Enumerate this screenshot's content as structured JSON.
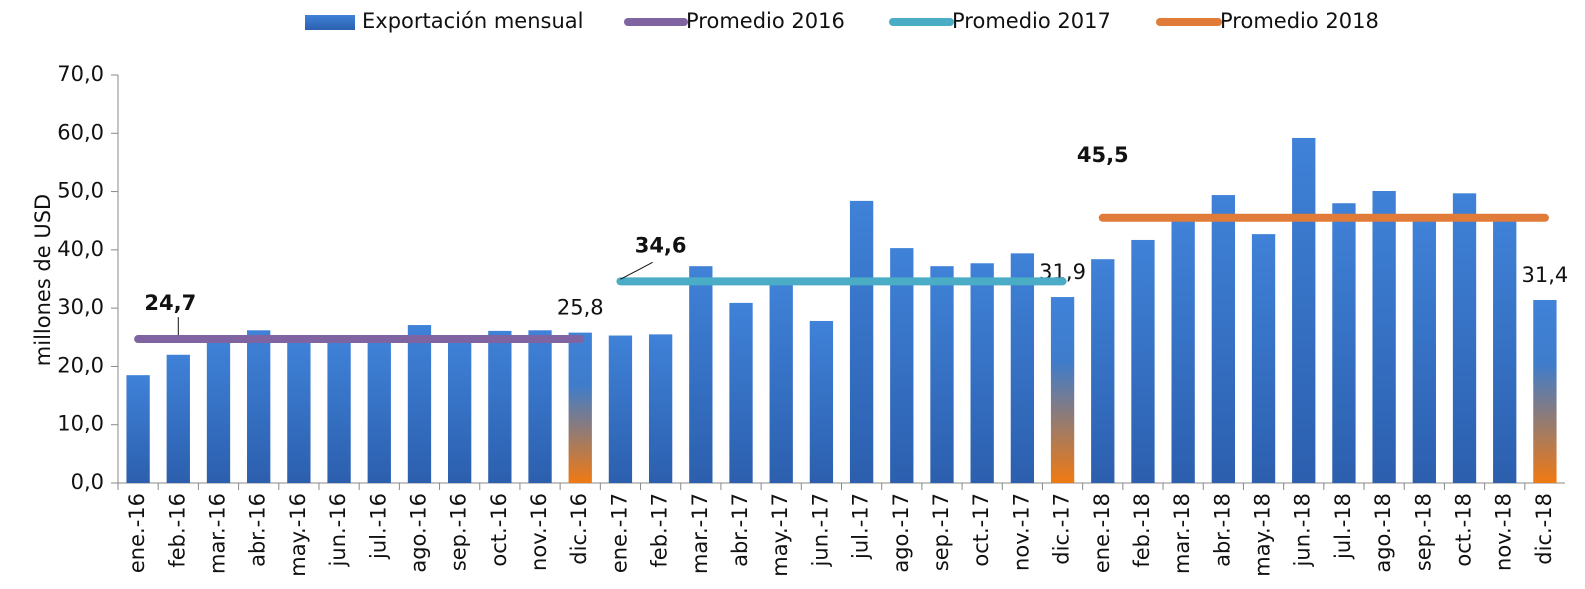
{
  "chart_data": {
    "type": "bar",
    "y_label": "millones de USD",
    "categories": [
      "ene.-16",
      "feb.-16",
      "mar.-16",
      "abr.-16",
      "may.-16",
      "jun.-16",
      "jul.-16",
      "ago.-16",
      "sep.-16",
      "oct.-16",
      "nov.-16",
      "dic.-16",
      "ene.-17",
      "feb.-17",
      "mar.-17",
      "abr.-17",
      "may.-17",
      "jun.-17",
      "jul.-17",
      "ago.-17",
      "sep.-17",
      "oct.-17",
      "nov.-17",
      "dic.-17",
      "ene.-18",
      "feb.-18",
      "mar.-18",
      "abr.-18",
      "may.-18",
      "jun.-18",
      "jul.-18",
      "ago.-18",
      "sep.-18",
      "oct.-18",
      "nov.-18",
      "dic.-18"
    ],
    "series": [
      {
        "name": "Exportación mensual",
        "type": "bar",
        "color": "#3d7cd0",
        "highlight_color": "#e8761e",
        "highlighted": [
          11,
          23,
          35
        ],
        "values": [
          18.5,
          22.0,
          24.5,
          26.2,
          24.5,
          24.5,
          24.5,
          27.1,
          25.0,
          26.1,
          26.2,
          25.8,
          25.3,
          25.5,
          37.2,
          30.9,
          34.3,
          27.8,
          48.4,
          40.3,
          37.2,
          37.7,
          39.4,
          31.9,
          38.4,
          41.7,
          45.0,
          49.4,
          42.7,
          59.2,
          48.0,
          50.1,
          45.3,
          49.7,
          45.5,
          31.4
        ],
        "value_labels": [
          null,
          null,
          null,
          null,
          null,
          null,
          null,
          null,
          null,
          null,
          null,
          "25,8",
          null,
          null,
          null,
          null,
          null,
          null,
          null,
          null,
          null,
          null,
          null,
          "31,9",
          null,
          null,
          null,
          null,
          null,
          null,
          null,
          null,
          null,
          null,
          null,
          "31,4"
        ]
      },
      {
        "name": "Promedio 2016",
        "type": "line",
        "color": "#8064a2",
        "label_index": 1,
        "values": [
          24.7,
          24.7,
          24.7,
          24.7,
          24.7,
          24.7,
          24.7,
          24.7,
          24.7,
          24.7,
          24.7,
          24.7,
          null,
          null,
          null,
          null,
          null,
          null,
          null,
          null,
          null,
          null,
          null,
          null,
          null,
          null,
          null,
          null,
          null,
          null,
          null,
          null,
          null,
          null,
          null,
          null
        ],
        "value_labels": [
          null,
          "24,7",
          null,
          null,
          null,
          null,
          null,
          null,
          null,
          null,
          null,
          null,
          null,
          null,
          null,
          null,
          null,
          null,
          null,
          null,
          null,
          null,
          null,
          null,
          null,
          null,
          null,
          null,
          null,
          null,
          null,
          null,
          null,
          null,
          null,
          null
        ]
      },
      {
        "name": "Promedio 2017",
        "type": "line",
        "color": "#4bacc6",
        "label_index": 13,
        "values": [
          null,
          null,
          null,
          null,
          null,
          null,
          null,
          null,
          null,
          null,
          null,
          null,
          34.6,
          34.6,
          34.6,
          34.6,
          34.6,
          34.6,
          34.6,
          34.6,
          34.6,
          34.6,
          34.6,
          34.6,
          null,
          null,
          null,
          null,
          null,
          null,
          null,
          null,
          null,
          null,
          null,
          null
        ],
        "value_labels": [
          null,
          null,
          null,
          null,
          null,
          null,
          null,
          null,
          null,
          null,
          null,
          null,
          null,
          "34,6",
          null,
          null,
          null,
          null,
          null,
          null,
          null,
          null,
          null,
          null,
          null,
          null,
          null,
          null,
          null,
          null,
          null,
          null,
          null,
          null,
          null,
          null
        ]
      },
      {
        "name": "Promedio 2018",
        "type": "line",
        "color": "#e07b39",
        "label_index": 24,
        "values": [
          null,
          null,
          null,
          null,
          null,
          null,
          null,
          null,
          null,
          null,
          null,
          null,
          null,
          null,
          null,
          null,
          null,
          null,
          null,
          null,
          null,
          null,
          null,
          null,
          45.5,
          45.5,
          45.5,
          45.5,
          45.5,
          45.5,
          45.5,
          45.5,
          45.5,
          45.5,
          45.5,
          45.5
        ],
        "value_labels": [
          null,
          null,
          null,
          null,
          null,
          null,
          null,
          null,
          null,
          null,
          null,
          null,
          null,
          null,
          null,
          null,
          null,
          null,
          null,
          null,
          null,
          null,
          null,
          null,
          "45,5",
          null,
          null,
          null,
          null,
          null,
          null,
          null,
          null,
          null,
          null,
          null
        ]
      }
    ],
    "ylim": [
      0,
      70
    ],
    "yticks": [
      {
        "value": 0,
        "label": "0,0"
      },
      {
        "value": 10,
        "label": "10,0"
      },
      {
        "value": 20,
        "label": "20,0"
      },
      {
        "value": 30,
        "label": "30,0"
      },
      {
        "value": 40,
        "label": "40,0"
      },
      {
        "value": 50,
        "label": "50,0"
      },
      {
        "value": 60,
        "label": "60,0"
      },
      {
        "value": 70,
        "label": "70,0"
      }
    ],
    "legend": "top"
  }
}
